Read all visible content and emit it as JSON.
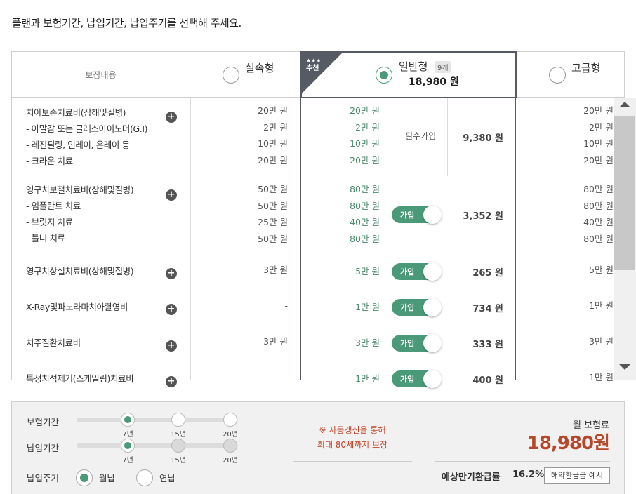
{
  "instruction": "플랜과 보험기간, 납입기간, 납입주기를 선택해 주세요.",
  "header": {
    "coverage_label": "보장내용",
    "plans": [
      {
        "name": "실속형",
        "selected": false
      },
      {
        "name": "일반형",
        "selected": true,
        "count_badge": "9개",
        "price": "18,980 원",
        "ribbon_stars": "★★★",
        "ribbon_text": "추천"
      },
      {
        "name": "고급형",
        "selected": false
      }
    ]
  },
  "rows": [
    {
      "lines": [
        "치아보존치료비(상해및질병)",
        "- 아말감 또는 글래스아이노머(G.I)",
        "- 레진필링, 인레이, 온레이 등",
        "- 크라운 치료"
      ],
      "plan1": [
        "20만 원",
        "2만 원",
        "10만 원",
        "20만 원"
      ],
      "plan2": [
        "20만 원",
        "2만 원",
        "10만 원",
        "20만 원"
      ],
      "plan3": [
        "20만 원",
        "2만 원",
        "10만 원",
        "20만 원"
      ],
      "join": "필수가입",
      "premium": "9,380 원"
    },
    {
      "lines": [
        "영구치보철치료비(상해및질병)",
        "- 임플란트 치료",
        "- 브릿지 치료",
        "- 틀니 치료"
      ],
      "plan1": [
        "50만 원",
        "50만 원",
        "25만 원",
        "50만 원"
      ],
      "plan2": [
        "80만 원",
        "80만 원",
        "40만 원",
        "80만 원"
      ],
      "plan3": [
        "80만 원",
        "80만 원",
        "40만 원",
        "80만 원"
      ],
      "join": "가입",
      "premium": "3,352 원"
    },
    {
      "lines": [
        "영구치상실치료비(상해및질병)"
      ],
      "plan1": [
        "3만 원"
      ],
      "plan2": [
        "5만 원"
      ],
      "plan3": [
        "5만 원"
      ],
      "join": "가입",
      "premium": "265 원"
    },
    {
      "lines": [
        "X-Ray및파노라마치아촬영비"
      ],
      "plan1": [
        "-"
      ],
      "plan2": [
        "1만 원"
      ],
      "plan3": [
        "1만 원"
      ],
      "join": "가입",
      "premium": "734 원"
    },
    {
      "lines": [
        "치주질환치료비"
      ],
      "plan1": [
        "3만 원"
      ],
      "plan2": [
        "3만 원"
      ],
      "plan3": [
        "3만 원"
      ],
      "join": "가입",
      "premium": "333 원"
    },
    {
      "lines": [
        "특정치석제거(스케일링)치료비"
      ],
      "plan1": [
        ""
      ],
      "plan2": [
        "1만 원"
      ],
      "plan3": [
        "1만 원"
      ],
      "join": "가입",
      "premium": "400 원"
    }
  ],
  "options": {
    "insurance_period_label": "보험기간",
    "payment_period_label": "납입기간",
    "payment_cycle_label": "납입주기",
    "period_ticks": [
      "7년",
      "15년",
      "20년"
    ],
    "insurance_period_selected": "7년",
    "payment_period_selected": "7년",
    "cycle_monthly": "월납",
    "cycle_yearly": "연납",
    "cycle_selected": "월납"
  },
  "notice": [
    "※ 자동갱신을 통해",
    "최대 80세까지 보장"
  ],
  "summary": {
    "monthly_label": "월 보험료",
    "monthly_value": "18,980원",
    "refund_label": "예상만기환급률",
    "refund_value": "16.2%",
    "refund_button": "해약환급금 예시"
  },
  "colors": {
    "accent": "#4a9a7a",
    "price": "#b5482a",
    "selected_border": "#555a64"
  }
}
